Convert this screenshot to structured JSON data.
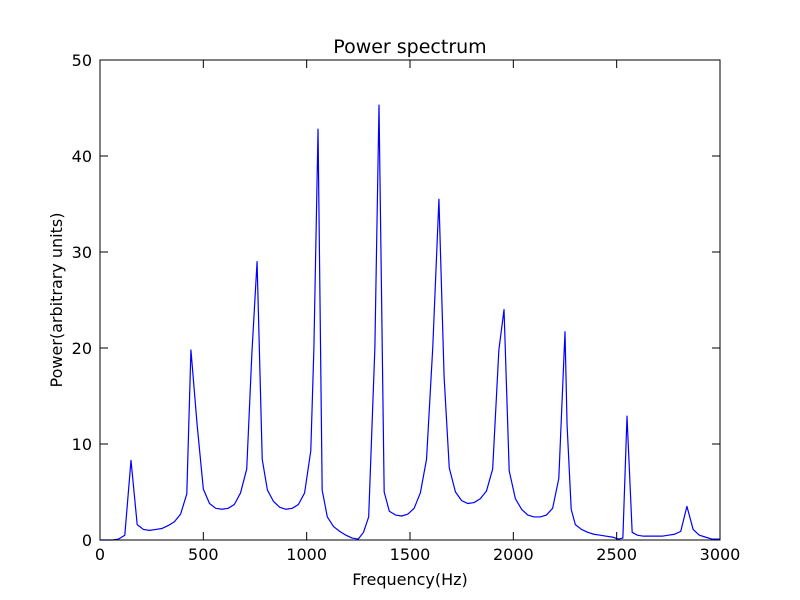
{
  "chart_data": {
    "type": "line",
    "title": "Power spectrum",
    "xlabel": "Frequency(Hz)",
    "ylabel": "Power(arbitrary units)",
    "xlim": [
      0,
      3000
    ],
    "ylim": [
      0,
      50
    ],
    "xticks": [
      0,
      500,
      1000,
      1500,
      2000,
      2500,
      3000
    ],
    "yticks": [
      0,
      10,
      20,
      30,
      40,
      50
    ],
    "grid": false,
    "legend": "none",
    "series": [
      {
        "color": "#0000ff",
        "x": [
          0,
          30,
          60,
          90,
          120,
          150,
          180,
          210,
          240,
          270,
          300,
          330,
          360,
          390,
          420,
          440,
          470,
          500,
          530,
          560,
          590,
          620,
          650,
          680,
          710,
          735,
          760,
          785,
          810,
          840,
          870,
          900,
          930,
          960,
          990,
          1020,
          1035,
          1055,
          1075,
          1100,
          1130,
          1160,
          1190,
          1220,
          1250,
          1275,
          1300,
          1330,
          1350,
          1375,
          1400,
          1430,
          1460,
          1490,
          1520,
          1550,
          1580,
          1610,
          1640,
          1665,
          1690,
          1720,
          1750,
          1780,
          1810,
          1840,
          1870,
          1900,
          1930,
          1955,
          1980,
          2010,
          2040,
          2070,
          2100,
          2130,
          2160,
          2190,
          2220,
          2250,
          2260,
          2280,
          2300,
          2330,
          2360,
          2390,
          2420,
          2450,
          2480,
          2510,
          2530,
          2550,
          2575,
          2600,
          2630,
          2660,
          2690,
          2720,
          2750,
          2780,
          2810,
          2840,
          2870,
          2900,
          2930,
          2960,
          3000
        ],
        "y": [
          0,
          0,
          0,
          0.1,
          0.5,
          8.3,
          1.6,
          1.1,
          1.0,
          1.1,
          1.2,
          1.5,
          1.9,
          2.7,
          4.8,
          19.8,
          12.0,
          5.3,
          3.8,
          3.3,
          3.2,
          3.3,
          3.7,
          4.9,
          7.4,
          19.5,
          29.0,
          8.4,
          5.2,
          4.0,
          3.4,
          3.2,
          3.3,
          3.7,
          4.9,
          9.3,
          20.0,
          42.8,
          5.2,
          2.4,
          1.4,
          0.9,
          0.5,
          0.2,
          0.1,
          0.8,
          2.4,
          20.0,
          45.3,
          5.0,
          3.0,
          2.6,
          2.5,
          2.7,
          3.3,
          4.9,
          8.4,
          20.0,
          35.5,
          17.0,
          7.5,
          5.0,
          4.1,
          3.8,
          3.9,
          4.3,
          5.1,
          7.4,
          19.8,
          24.0,
          7.2,
          4.3,
          3.2,
          2.6,
          2.4,
          2.4,
          2.6,
          3.3,
          6.4,
          21.7,
          12.0,
          3.2,
          1.6,
          1.1,
          0.8,
          0.6,
          0.5,
          0.4,
          0.3,
          0.1,
          0.2,
          12.9,
          0.8,
          0.5,
          0.4,
          0.4,
          0.4,
          0.4,
          0.5,
          0.6,
          0.9,
          3.5,
          1.1,
          0.5,
          0.3,
          0.1,
          0.1
        ]
      }
    ]
  }
}
